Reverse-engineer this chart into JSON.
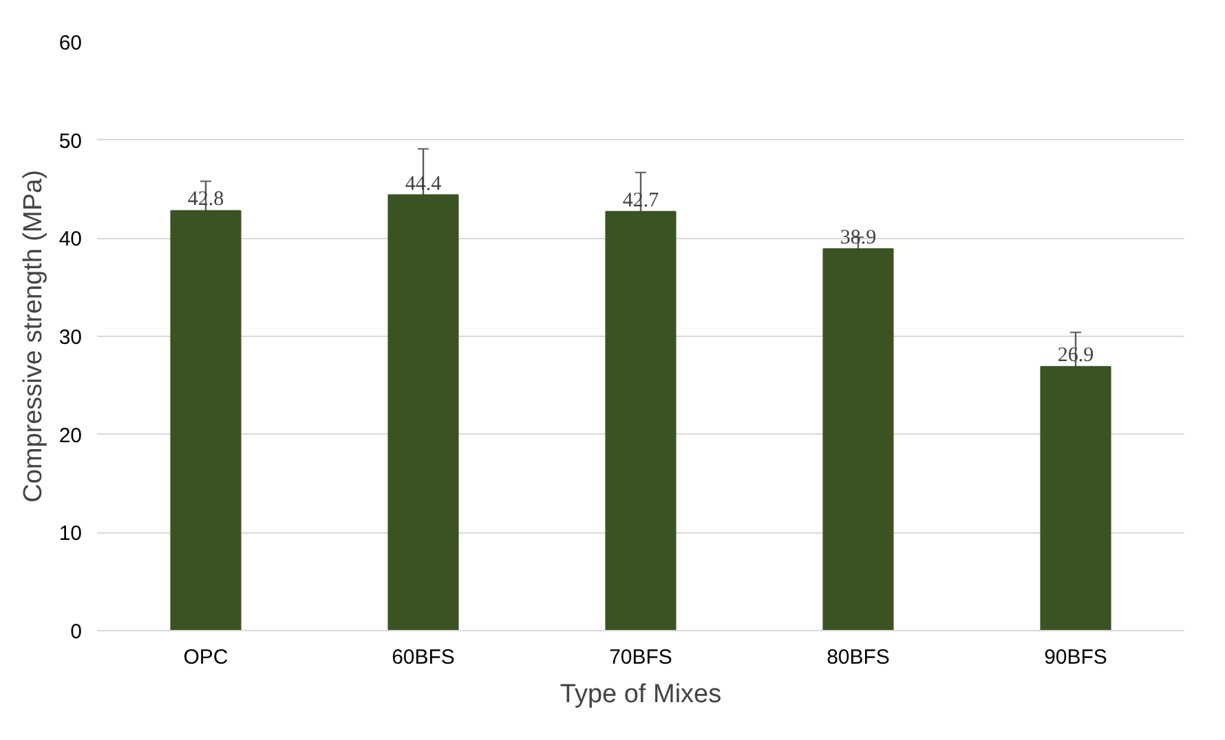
{
  "chart_data": {
    "type": "bar",
    "xlabel": "Type of Mixes",
    "ylabel": "Compressive strength (MPa)",
    "categories": [
      "OPC",
      "60BFS",
      "70BFS",
      "80BFS",
      "90BFS"
    ],
    "values": [
      42.8,
      44.4,
      42.7,
      38.9,
      26.9
    ],
    "errors": [
      3.0,
      4.7,
      4.0,
      1.2,
      3.5
    ],
    "color": "#3b5323",
    "data_labels": true,
    "ylim": [
      0,
      60
    ],
    "yticks": [
      0,
      10,
      20,
      30,
      40,
      50,
      60
    ],
    "grid": "y"
  }
}
